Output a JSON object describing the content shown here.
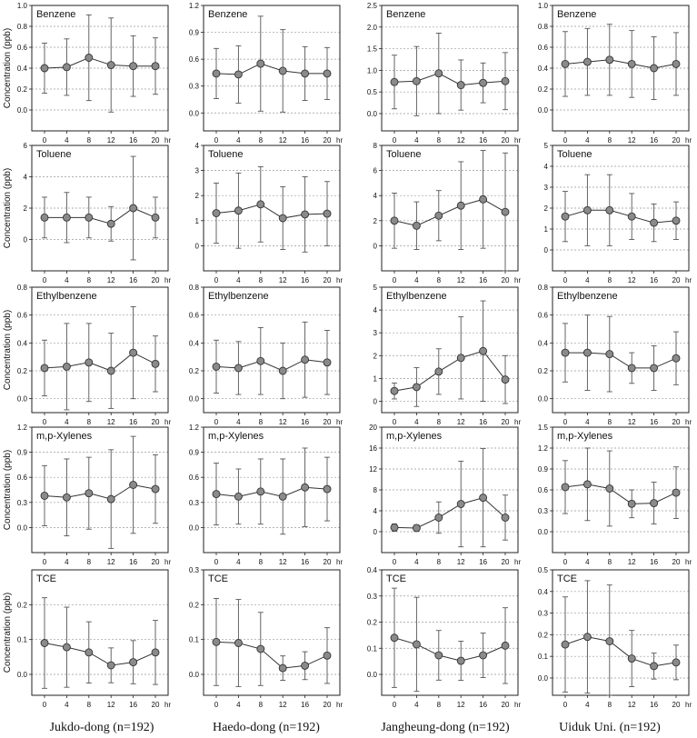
{
  "figure": {
    "ylabel": "Concentration (ppb)",
    "hr_unit": "hr",
    "sites": [
      "Jukdo-dong (n=192)",
      "Haedo-dong (n=192)",
      "Jangheung-dong (n=192)",
      "Uiduk  Uni. (n=192)"
    ]
  },
  "chart_data": [
    {
      "type": "line",
      "compound": "Benzene",
      "site": "Jukdo-dong (n=192)",
      "x": [
        0,
        4,
        8,
        12,
        16,
        20
      ],
      "xticks": [
        "0",
        "4",
        "8",
        "12",
        "16",
        "20"
      ],
      "ylim": [
        -0.2,
        1.0
      ],
      "yticks": [
        "0.0",
        "0.2",
        "0.4",
        "0.6",
        "0.8",
        "1.0"
      ],
      "y": [
        0.4,
        0.41,
        0.5,
        0.43,
        0.42,
        0.42
      ],
      "err": [
        0.24,
        0.27,
        0.41,
        0.45,
        0.29,
        0.27
      ]
    },
    {
      "type": "line",
      "compound": "Benzene",
      "site": "Haedo-dong (n=192)",
      "x": [
        0,
        4,
        8,
        12,
        16,
        20
      ],
      "xticks": [
        "0",
        "4",
        "8",
        "12",
        "16",
        "20"
      ],
      "ylim": [
        -0.2,
        1.2
      ],
      "yticks": [
        "0.0",
        "0.3",
        "0.6",
        "0.9",
        "1.2"
      ],
      "y": [
        0.44,
        0.43,
        0.55,
        0.47,
        0.44,
        0.44
      ],
      "err": [
        0.28,
        0.32,
        0.53,
        0.46,
        0.3,
        0.29
      ]
    },
    {
      "type": "line",
      "compound": "Benzene",
      "site": "Jangheung-dong (n=192)",
      "x": [
        0,
        4,
        8,
        12,
        16,
        20
      ],
      "xticks": [
        "0",
        "4",
        "8",
        "12",
        "16",
        "20"
      ],
      "ylim": [
        -0.4,
        2.5
      ],
      "yticks": [
        "0.0",
        "0.5",
        "1.0",
        "1.5",
        "2.0",
        "2.5"
      ],
      "y": [
        0.73,
        0.75,
        0.93,
        0.66,
        0.71,
        0.75
      ],
      "err": [
        0.62,
        0.8,
        0.93,
        0.58,
        0.46,
        0.66
      ]
    },
    {
      "type": "line",
      "compound": "Benzene",
      "site": "Uiduk  Uni. (n=192)",
      "x": [
        0,
        4,
        8,
        12,
        16,
        20
      ],
      "xticks": [
        "0",
        "4",
        "8",
        "12",
        "16",
        "20"
      ],
      "ylim": [
        -0.2,
        1.0
      ],
      "yticks": [
        "0.0",
        "0.2",
        "0.4",
        "0.6",
        "0.8",
        "1.0"
      ],
      "y": [
        0.44,
        0.46,
        0.48,
        0.44,
        0.4,
        0.44
      ],
      "err": [
        0.31,
        0.32,
        0.34,
        0.32,
        0.3,
        0.3
      ]
    },
    {
      "type": "line",
      "compound": "Toluene",
      "site": "Jukdo-dong (n=192)",
      "x": [
        0,
        4,
        8,
        12,
        16,
        20
      ],
      "xticks": [
        "0",
        "4",
        "8",
        "12",
        "16",
        "20"
      ],
      "ylim": [
        -2,
        6
      ],
      "yticks": [
        "0",
        "2",
        "4",
        "6"
      ],
      "y": [
        1.4,
        1.4,
        1.4,
        1.0,
        2.0,
        1.4
      ],
      "err": [
        1.3,
        1.6,
        1.3,
        1.1,
        3.3,
        1.3
      ]
    },
    {
      "type": "line",
      "compound": "Toluene",
      "site": "Haedo-dong (n=192)",
      "x": [
        0,
        4,
        8,
        12,
        16,
        20
      ],
      "xticks": [
        "0",
        "4",
        "8",
        "12",
        "16",
        "20"
      ],
      "ylim": [
        -1,
        4
      ],
      "yticks": [
        "0",
        "1",
        "2",
        "3",
        "4"
      ],
      "y": [
        1.3,
        1.4,
        1.65,
        1.1,
        1.25,
        1.28
      ],
      "err": [
        1.2,
        1.5,
        1.5,
        1.25,
        1.5,
        1.28
      ]
    },
    {
      "type": "line",
      "compound": "Toluene",
      "site": "Jangheung-dong (n=192)",
      "x": [
        0,
        4,
        8,
        12,
        16,
        20
      ],
      "xticks": [
        "0",
        "4",
        "8",
        "12",
        "16",
        "20"
      ],
      "ylim": [
        -2,
        8
      ],
      "yticks": [
        "0",
        "2",
        "4",
        "6",
        "8"
      ],
      "y": [
        2.0,
        1.6,
        2.4,
        3.2,
        3.7,
        2.7
      ],
      "err": [
        2.2,
        1.9,
        2.0,
        3.5,
        3.9,
        4.7
      ]
    },
    {
      "type": "line",
      "compound": "Toluene",
      "site": "Uiduk  Uni. (n=192)",
      "x": [
        0,
        4,
        8,
        12,
        16,
        20
      ],
      "xticks": [
        "0",
        "4",
        "8",
        "12",
        "16",
        "20"
      ],
      "ylim": [
        -1,
        5
      ],
      "yticks": [
        "0",
        "1",
        "2",
        "3",
        "4",
        "5"
      ],
      "y": [
        1.6,
        1.9,
        1.9,
        1.6,
        1.3,
        1.4
      ],
      "err": [
        1.2,
        1.7,
        1.7,
        1.1,
        0.9,
        0.9
      ]
    },
    {
      "type": "line",
      "compound": "Ethylbenzene",
      "site": "Jukdo-dong (n=192)",
      "x": [
        0,
        4,
        8,
        12,
        16,
        20
      ],
      "xticks": [
        "0",
        "4",
        "8",
        "12",
        "16",
        "20"
      ],
      "ylim": [
        -0.1,
        0.8
      ],
      "yticks": [
        "0.0",
        "0.2",
        "0.4",
        "0.6",
        "0.8"
      ],
      "y": [
        0.22,
        0.23,
        0.26,
        0.2,
        0.33,
        0.25
      ],
      "err": [
        0.2,
        0.31,
        0.28,
        0.27,
        0.33,
        0.2
      ]
    },
    {
      "type": "line",
      "compound": "Ethylbenzene",
      "site": "Haedo-dong (n=192)",
      "x": [
        0,
        4,
        8,
        12,
        16,
        20
      ],
      "xticks": [
        "0",
        "4",
        "8",
        "12",
        "16",
        "20"
      ],
      "ylim": [
        -0.1,
        0.8
      ],
      "yticks": [
        "0.0",
        "0.2",
        "0.4",
        "0.6",
        "0.8"
      ],
      "y": [
        0.23,
        0.22,
        0.27,
        0.2,
        0.28,
        0.26
      ],
      "err": [
        0.19,
        0.19,
        0.24,
        0.2,
        0.27,
        0.23
      ]
    },
    {
      "type": "line",
      "compound": "Ethylbenzene",
      "site": "Jangheung-dong (n=192)",
      "x": [
        0,
        4,
        8,
        12,
        16,
        20
      ],
      "xticks": [
        "0",
        "4",
        "8",
        "12",
        "16",
        "20"
      ],
      "ylim": [
        -0.5,
        5
      ],
      "yticks": [
        "0",
        "1",
        "2",
        "3",
        "4",
        "5"
      ],
      "y": [
        0.45,
        0.62,
        1.3,
        1.9,
        2.2,
        0.95
      ],
      "err": [
        0.35,
        0.85,
        1.0,
        1.8,
        2.2,
        1.05
      ]
    },
    {
      "type": "line",
      "compound": "Ethylbenzene",
      "site": "Uiduk  Uni. (n=192)",
      "x": [
        0,
        4,
        8,
        12,
        16,
        20
      ],
      "xticks": [
        "0",
        "4",
        "8",
        "12",
        "16",
        "20"
      ],
      "ylim": [
        -0.1,
        0.8
      ],
      "yticks": [
        "0.0",
        "0.2",
        "0.4",
        "0.6",
        "0.8"
      ],
      "y": [
        0.33,
        0.33,
        0.32,
        0.22,
        0.22,
        0.29
      ],
      "err": [
        0.21,
        0.27,
        0.27,
        0.11,
        0.16,
        0.19
      ]
    },
    {
      "type": "line",
      "compound": "m,p-Xylenes",
      "site": "Jukdo-dong (n=192)",
      "x": [
        0,
        4,
        8,
        12,
        16,
        20
      ],
      "xticks": [
        "0",
        "4",
        "8",
        "12",
        "16",
        "20"
      ],
      "ylim": [
        -0.3,
        1.2
      ],
      "yticks": [
        "0.0",
        "0.3",
        "0.6",
        "0.9",
        "1.2"
      ],
      "y": [
        0.38,
        0.36,
        0.41,
        0.34,
        0.51,
        0.46
      ],
      "err": [
        0.36,
        0.46,
        0.43,
        0.59,
        0.58,
        0.41
      ]
    },
    {
      "type": "line",
      "compound": "m,p-Xylenes",
      "site": "Haedo-dong (n=192)",
      "x": [
        0,
        4,
        8,
        12,
        16,
        20
      ],
      "xticks": [
        "0",
        "4",
        "8",
        "12",
        "16",
        "20"
      ],
      "ylim": [
        -0.3,
        1.2
      ],
      "yticks": [
        "0.0",
        "0.3",
        "0.6",
        "0.9",
        "1.2"
      ],
      "y": [
        0.4,
        0.37,
        0.43,
        0.37,
        0.48,
        0.46
      ],
      "err": [
        0.37,
        0.33,
        0.39,
        0.45,
        0.47,
        0.38
      ]
    },
    {
      "type": "line",
      "compound": "m,p-Xylenes",
      "site": "Jangheung-dong (n=192)",
      "x": [
        0,
        4,
        8,
        12,
        16,
        20
      ],
      "xticks": [
        "0",
        "4",
        "8",
        "12",
        "16",
        "20"
      ],
      "ylim": [
        -4,
        20
      ],
      "yticks": [
        "0",
        "4",
        "8",
        "12",
        "16",
        "20"
      ],
      "y": [
        0.8,
        0.7,
        2.7,
        5.3,
        6.5,
        2.7
      ],
      "err": [
        0.7,
        0.6,
        3.0,
        8.2,
        9.4,
        4.3
      ]
    },
    {
      "type": "line",
      "compound": "m,p-Xylenes",
      "site": "Uiduk  Uni. (n=192)",
      "x": [
        0,
        4,
        8,
        12,
        16,
        20
      ],
      "xticks": [
        "0",
        "4",
        "8",
        "12",
        "16",
        "20"
      ],
      "ylim": [
        -0.3,
        1.5
      ],
      "yticks": [
        "0.0",
        "0.3",
        "0.6",
        "0.9",
        "1.2",
        "1.5"
      ],
      "y": [
        0.64,
        0.68,
        0.62,
        0.4,
        0.41,
        0.56
      ],
      "err": [
        0.38,
        0.52,
        0.54,
        0.2,
        0.3,
        0.37
      ]
    },
    {
      "type": "line",
      "compound": "TCE",
      "site": "Jukdo-dong (n=192)",
      "x": [
        0,
        4,
        8,
        12,
        16,
        20
      ],
      "xticks": [
        "0",
        "4",
        "8",
        "12",
        "16",
        "20"
      ],
      "ylim": [
        -0.06,
        0.3
      ],
      "yticks": [
        "0.0",
        "0.1",
        "0.2"
      ],
      "y": [
        0.09,
        0.078,
        0.063,
        0.026,
        0.035,
        0.063
      ],
      "err": [
        0.13,
        0.115,
        0.088,
        0.05,
        0.062,
        0.092
      ]
    },
    {
      "type": "line",
      "compound": "TCE",
      "site": "Haedo-dong (n=192)",
      "x": [
        0,
        4,
        8,
        12,
        16,
        20
      ],
      "xticks": [
        "0",
        "4",
        "8",
        "12",
        "16",
        "20"
      ],
      "ylim": [
        -0.06,
        0.3
      ],
      "yticks": [
        "0.0",
        "0.1",
        "0.2",
        "0.3"
      ],
      "y": [
        0.093,
        0.09,
        0.073,
        0.018,
        0.025,
        0.054
      ],
      "err": [
        0.125,
        0.125,
        0.105,
        0.035,
        0.04,
        0.08
      ]
    },
    {
      "type": "line",
      "compound": "TCE",
      "site": "Jangheung-dong (n=192)",
      "x": [
        0,
        4,
        8,
        12,
        16,
        20
      ],
      "xticks": [
        "0",
        "4",
        "8",
        "12",
        "16",
        "20"
      ],
      "ylim": [
        -0.08,
        0.4
      ],
      "yticks": [
        "0.0",
        "0.1",
        "0.2",
        "0.3",
        "0.4"
      ],
      "y": [
        0.14,
        0.115,
        0.073,
        0.052,
        0.073,
        0.11
      ],
      "err": [
        0.19,
        0.18,
        0.095,
        0.075,
        0.085,
        0.145
      ]
    },
    {
      "type": "line",
      "compound": "TCE",
      "site": "Uiduk  Uni. (n=192)",
      "x": [
        0,
        4,
        8,
        12,
        16,
        20
      ],
      "xticks": [
        "0",
        "4",
        "8",
        "12",
        "16",
        "20"
      ],
      "ylim": [
        -0.08,
        0.5
      ],
      "yticks": [
        "0.0",
        "0.1",
        "0.2",
        "0.3",
        "0.4",
        "0.5"
      ],
      "y": [
        0.155,
        0.19,
        0.17,
        0.09,
        0.055,
        0.072
      ],
      "err": [
        0.22,
        0.26,
        0.26,
        0.13,
        0.06,
        0.08
      ]
    }
  ]
}
